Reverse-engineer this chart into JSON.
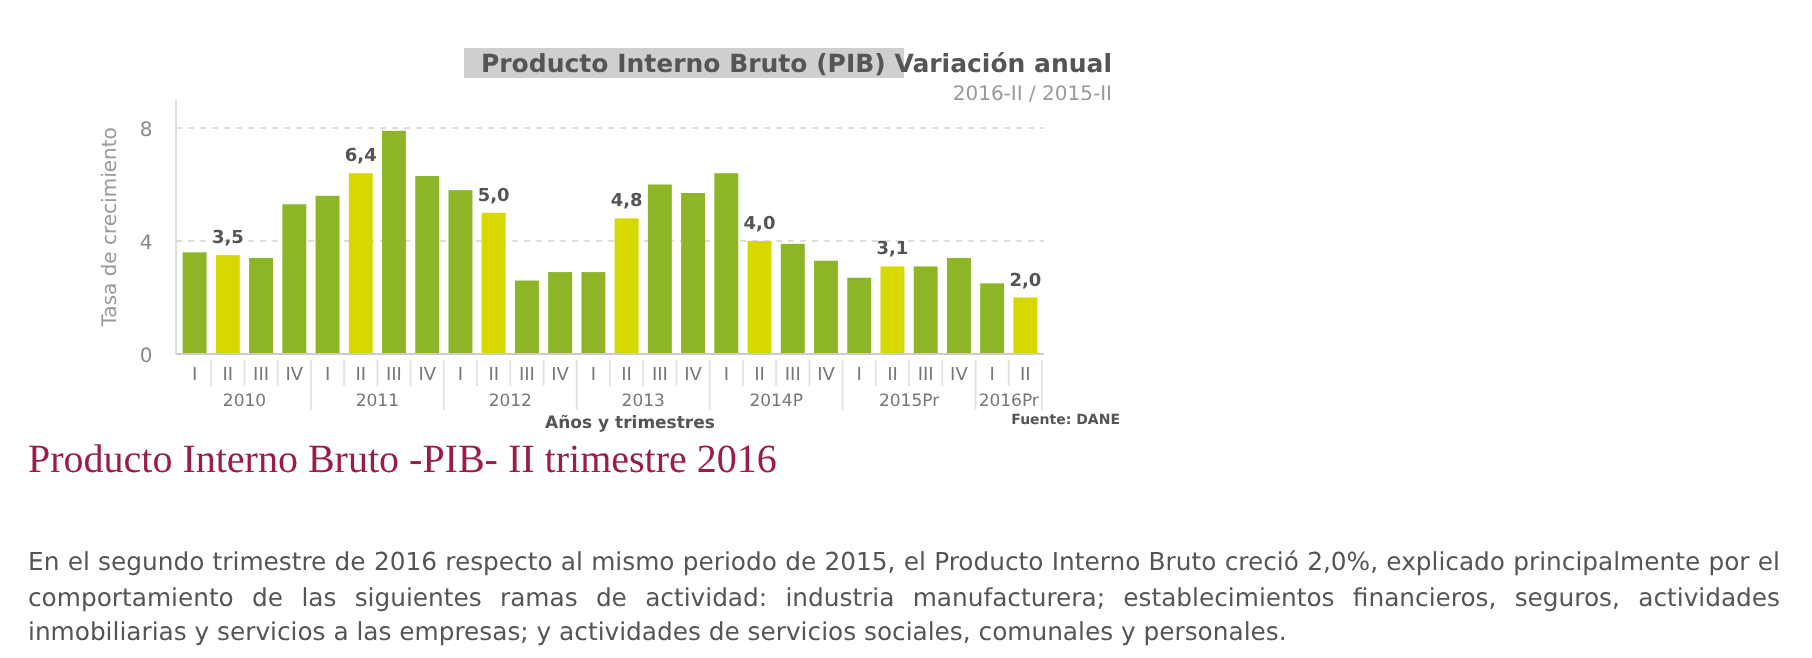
{
  "chart_data": {
    "type": "bar",
    "title": "Producto Interno Bruto (PIB) Variación anual",
    "subtitle": "2016-II / 2015-II",
    "xlabel": "Años y trimestres",
    "ylabel": "Tasa de crecimiento",
    "categories": [
      "I",
      "II",
      "III",
      "IV",
      "I",
      "II",
      "III",
      "IV",
      "I",
      "II",
      "III",
      "IV",
      "I",
      "II",
      "III",
      "IV",
      "I",
      "II",
      "III",
      "IV",
      "I",
      "II",
      "III",
      "IV",
      "I",
      "II"
    ],
    "values": [
      3.6,
      3.5,
      3.4,
      5.3,
      5.6,
      6.4,
      7.9,
      6.3,
      5.8,
      5.0,
      2.6,
      2.9,
      2.9,
      4.8,
      6.0,
      5.7,
      6.4,
      4.0,
      3.9,
      3.3,
      2.7,
      3.1,
      3.1,
      3.4,
      2.5,
      2.0
    ],
    "colors": [
      "#8db526",
      "#d6d800",
      "#8db526",
      "#8db526",
      "#8db526",
      "#d6d800",
      "#8db526",
      "#8db526",
      "#8db526",
      "#d6d800",
      "#8db526",
      "#8db526",
      "#8db526",
      "#d6d800",
      "#8db526",
      "#8db526",
      "#8db526",
      "#d6d800",
      "#8db526",
      "#8db526",
      "#8db526",
      "#d6d800",
      "#8db526",
      "#8db526",
      "#8db526",
      "#d6d800"
    ],
    "value_labels": [
      null,
      "3,5",
      null,
      null,
      null,
      "6,4",
      null,
      null,
      null,
      "5,0",
      null,
      null,
      null,
      "4,8",
      null,
      null,
      null,
      "4,0",
      null,
      null,
      null,
      "3,1",
      null,
      null,
      null,
      "2,0"
    ],
    "ylim": [
      0,
      9
    ],
    "yticks": [
      0,
      4,
      8
    ],
    "grid": "y",
    "annotations": [
      "2010",
      "2011",
      "2012",
      "2013",
      "2014P",
      "2015Pr",
      "2016Pr",
      "Fuente: DANE",
      "Producto Interno Bruto -PIB- II trimestre 2016",
      "En el segundo trimestre de 2016 respecto al mismo periodo de 2015, el Producto Interno Bruto creció 2,0%, explicado principalmente por el comportamiento de las siguientes ramas de actividad: industria manufacturera; establecimientos financieros, seguros, actividades inmobiliarias y servicios a las empresas; y actividades de servicios sociales, comunales y personales."
    ]
  }
}
